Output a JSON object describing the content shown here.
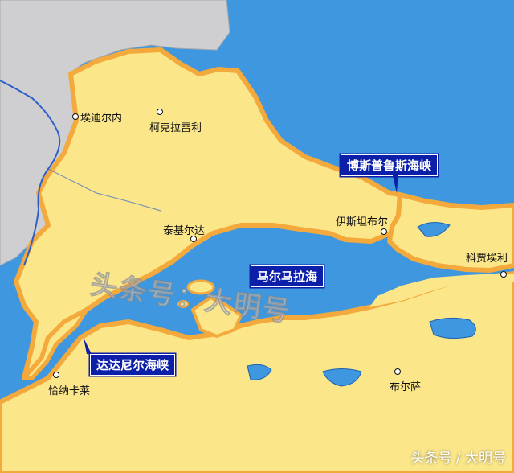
{
  "colors": {
    "sea": "#3f97df",
    "land": "#fbe68a",
    "coast": "#f4a93c",
    "neighbor": "#cfcfd2",
    "label_bg": "#0b1fa8",
    "river": "#2e5fc9"
  },
  "cities": [
    {
      "name": "埃迪尔内"
    },
    {
      "name": "柯克拉雷利"
    },
    {
      "name": "泰基尔达"
    },
    {
      "name": "伊斯坦布尔"
    },
    {
      "name": "科贾埃利"
    },
    {
      "name": "恰纳卡莱"
    },
    {
      "name": "布尔萨"
    }
  ],
  "water_labels": {
    "bosporus": "博斯普鲁斯海峡",
    "marmara": "马尔马拉海",
    "dardanelles": "达达尼尔海峡"
  },
  "watermark": "头条号：大明号",
  "corner_watermark": "头条号 / 大明号"
}
